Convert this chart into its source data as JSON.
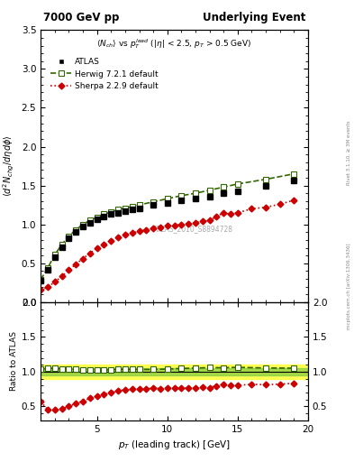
{
  "title_left": "7000 GeV pp",
  "title_right": "Underlying Event",
  "watermark": "ATLAS_2010_S8894728",
  "right_label": "Rivet 3.1.10, ≥ 3M events",
  "right_label2": "mcplots.cern.ch [arXiv:1306.3436]",
  "atlas_x": [
    1.0,
    1.5,
    2.0,
    2.5,
    3.0,
    3.5,
    4.0,
    4.5,
    5.0,
    5.5,
    6.0,
    6.5,
    7.0,
    7.5,
    8.0,
    9.0,
    10.0,
    11.0,
    12.0,
    13.0,
    14.0,
    15.0,
    17.0,
    19.0
  ],
  "atlas_y": [
    0.28,
    0.42,
    0.58,
    0.71,
    0.82,
    0.9,
    0.97,
    1.02,
    1.06,
    1.1,
    1.13,
    1.15,
    1.17,
    1.19,
    1.21,
    1.25,
    1.28,
    1.31,
    1.33,
    1.36,
    1.4,
    1.43,
    1.5,
    1.57
  ],
  "atlas_yerr": [
    0.01,
    0.01,
    0.01,
    0.01,
    0.01,
    0.01,
    0.01,
    0.01,
    0.01,
    0.01,
    0.01,
    0.01,
    0.01,
    0.01,
    0.01,
    0.01,
    0.01,
    0.01,
    0.01,
    0.01,
    0.02,
    0.02,
    0.02,
    0.03
  ],
  "herwig_x": [
    1.0,
    1.5,
    2.0,
    2.5,
    3.0,
    3.5,
    4.0,
    4.5,
    5.0,
    5.5,
    6.0,
    6.5,
    7.0,
    7.5,
    8.0,
    9.0,
    10.0,
    11.0,
    12.0,
    13.0,
    14.0,
    15.0,
    17.0,
    19.0
  ],
  "herwig_y": [
    0.29,
    0.44,
    0.61,
    0.74,
    0.85,
    0.93,
    1.0,
    1.05,
    1.09,
    1.13,
    1.16,
    1.19,
    1.21,
    1.23,
    1.25,
    1.29,
    1.33,
    1.37,
    1.4,
    1.44,
    1.48,
    1.52,
    1.58,
    1.65
  ],
  "sherpa_x": [
    1.0,
    1.5,
    2.0,
    2.5,
    3.0,
    3.5,
    4.0,
    4.5,
    5.0,
    5.5,
    6.0,
    6.5,
    7.0,
    7.5,
    8.0,
    8.5,
    9.0,
    9.5,
    10.0,
    10.5,
    11.0,
    11.5,
    12.0,
    12.5,
    13.0,
    13.5,
    14.0,
    14.5,
    15.0,
    16.0,
    17.0,
    18.0,
    19.0
  ],
  "sherpa_y": [
    0.16,
    0.19,
    0.26,
    0.33,
    0.41,
    0.49,
    0.56,
    0.63,
    0.69,
    0.74,
    0.79,
    0.83,
    0.87,
    0.89,
    0.91,
    0.93,
    0.95,
    0.96,
    0.98,
    0.99,
    1.0,
    1.01,
    1.02,
    1.04,
    1.05,
    1.1,
    1.15,
    1.13,
    1.15,
    1.2,
    1.22,
    1.26,
    1.31
  ],
  "ylim_main": [
    0.0,
    3.5
  ],
  "ylim_ratio": [
    0.3,
    2.0
  ],
  "xlim": [
    1.0,
    20.0
  ],
  "band_yellow_lo": 0.9,
  "band_yellow_hi": 1.1,
  "band_green_lo": 0.95,
  "band_green_hi": 1.05,
  "atlas_color": "#000000",
  "herwig_color": "#336600",
  "sherpa_color": "#cc0000",
  "band_yellow_color": "#ffff44",
  "band_green_color": "#88cc44"
}
